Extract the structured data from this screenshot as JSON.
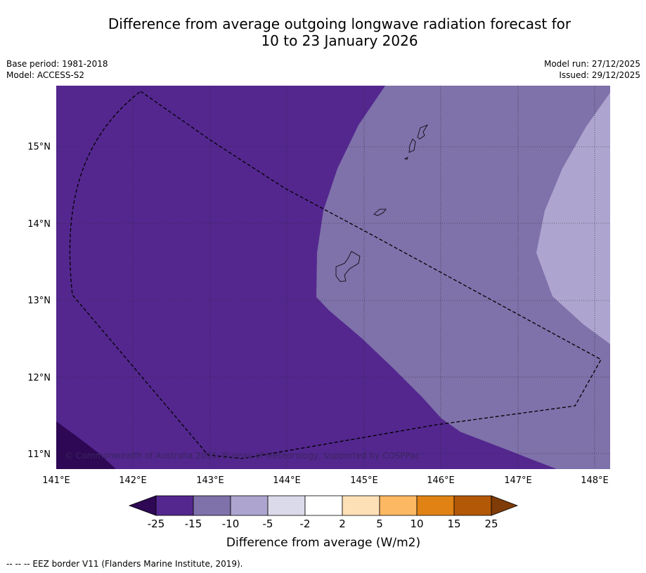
{
  "title_line1": "Difference from average outgoing longwave radiation forecast for",
  "title_line2": "10 to 23 January 2026",
  "base_period": "Base period: 1981-2018",
  "model": "Model: ACCESS-S2",
  "model_run": "Model run: 27/12/2025",
  "issued": "Issued: 29/12/2025",
  "map": {
    "lon_range": [
      141.0,
      148.2
    ],
    "lat_range": [
      10.8,
      15.8
    ],
    "lon_ticks": [
      "141°E",
      "142°E",
      "143°E",
      "144°E",
      "145°E",
      "146°E",
      "147°E",
      "148°E"
    ],
    "lat_ticks": [
      "11°N",
      "12°N",
      "13°N",
      "14°N",
      "15°N"
    ],
    "gridlines": "dotted",
    "copyright": "© Commonwealth of Australia 2025, Bureau of Meteorology, supported by COSPPac",
    "islands": [
      "Guam",
      "Rota",
      "Tinian",
      "Saipan"
    ]
  },
  "colorbar": {
    "ticks": [
      "-25",
      "-15",
      "-10",
      "-5",
      "-2",
      "2",
      "5",
      "10",
      "15",
      "25"
    ],
    "colors": [
      "#2e0854",
      "#54278f",
      "#7f71aa",
      "#ada5cf",
      "#dadaeb",
      "#ffffff",
      "#fee0b6",
      "#fdb863",
      "#e08214",
      "#b35806",
      "#7f3b08"
    ],
    "label": "Difference from average (W/m2)"
  },
  "footnote": "--  --  -- EEZ border V11 (Flanders Marine Institute, 2019)."
}
